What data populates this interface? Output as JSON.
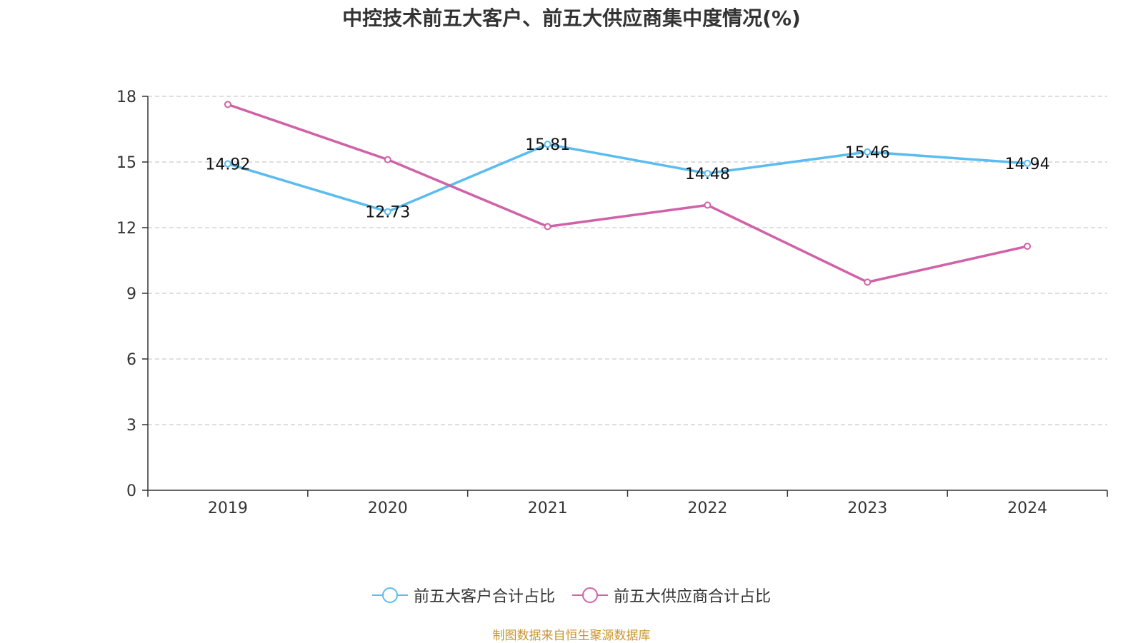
{
  "chart_data": {
    "type": "line",
    "title": "中控技术前五大客户、前五大供应商集中度情况(%)",
    "categories": [
      "2019",
      "2020",
      "2021",
      "2022",
      "2023",
      "2024"
    ],
    "series": [
      {
        "name": "前五大客户合计占比",
        "color": "#5bbcf0",
        "values": [
          14.92,
          12.73,
          15.81,
          14.48,
          15.46,
          14.94
        ],
        "show_labels": true
      },
      {
        "name": "前五大供应商合计占比",
        "color": "#d062a8",
        "values": [
          17.63,
          15.11,
          12.05,
          13.03,
          9.51,
          11.15
        ],
        "show_labels": false
      }
    ],
    "yticks": [
      0,
      3,
      6,
      9,
      12,
      15,
      18
    ],
    "ylim": [
      0,
      18
    ],
    "grid": true,
    "legend_position": "bottom"
  },
  "source": "制图数据来自恒生聚源数据库"
}
